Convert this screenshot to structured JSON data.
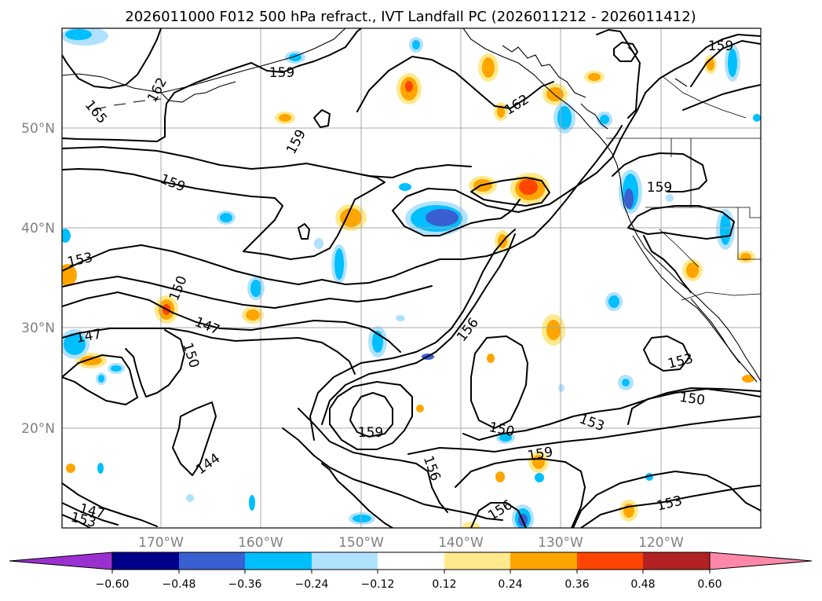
{
  "title": "2026011000 F012 500 hPa refract., IVT Landfall PC (2026011212 - 2026011412)",
  "lat_labels": [
    "50°N",
    "40°N",
    "30°N",
    "20°N"
  ],
  "lon_labels": [
    "170°W",
    "160°W",
    "150°W",
    "140°W",
    "130°W",
    "120°W"
  ],
  "contour_labels": [
    "159",
    "162",
    "165",
    "159",
    "159",
    "162",
    "159",
    "153",
    "150",
    "147",
    "147",
    "150",
    "144",
    "147",
    "153",
    "156",
    "159",
    "156",
    "150",
    "153",
    "159",
    "153",
    "150",
    "156",
    "153",
    "159"
  ],
  "colorbar": {
    "ticks": [
      "−0.60",
      "−0.48",
      "−0.36",
      "−0.24",
      "−0.12",
      "0.12",
      "0.24",
      "0.36",
      "0.48",
      "0.60"
    ],
    "colors": [
      "#9b30d0",
      "#00008b",
      "#3a5fd0",
      "#00bfff",
      "#b0e2ff",
      "#ffffff",
      "#ffe98c",
      "#ffa500",
      "#ff4500",
      "#b22222",
      "#ff88aa"
    ]
  }
}
